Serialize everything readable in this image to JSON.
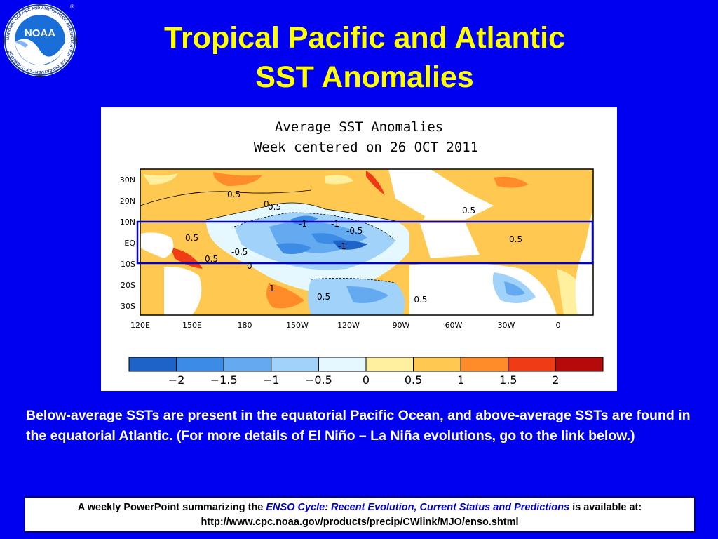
{
  "slide": {
    "title_line1": "Tropical Pacific and Atlantic",
    "title_line2": "SST Anomalies",
    "caption": "Below-average SSTs are present in the equatorial Pacific Ocean, and above-average SSTs are found in the equatorial Atlantic. (For more details of El Niño – La Niña evolutions, go to the link below.)"
  },
  "logo": {
    "text": "NOAA",
    "ring_text": "NATIONAL OCEANIC AND ATMOSPHERIC ADMINISTRATION · U.S. DEPARTMENT OF COMMERCE",
    "registered": "®"
  },
  "map": {
    "title_line1": "Average SST Anomalies",
    "title_line2": "Week centered on 26 OCT 2011",
    "lat_labels": [
      "30N",
      "20N",
      "10N",
      "EQ",
      "10S",
      "20S",
      "30S"
    ],
    "lon_labels": [
      "120E",
      "150E",
      "180",
      "150W",
      "120W",
      "90W",
      "60W",
      "30W",
      "0"
    ],
    "contour_labels": [
      "0.5",
      "0",
      "0.5",
      "0.5",
      "-1",
      "-1",
      "-0.5",
      "0.5",
      "-0.5",
      "-1",
      "0.5",
      "0.5",
      "0",
      "1",
      "0.5",
      "-0.5"
    ],
    "box_region": "10N–10S",
    "colorbar_ticks": [
      "-2",
      "-1.5",
      "-1",
      "-0.5",
      "0",
      "0.5",
      "1",
      "1.5",
      "2"
    ],
    "colorbar_colors": [
      "#1e64c8",
      "#3c8ce6",
      "#64aaf0",
      "#a0d2fa",
      "#e6f8ff",
      "#fff0a0",
      "#ffc850",
      "#ff8c28",
      "#f03c14",
      "#b40a0a"
    ]
  },
  "footer": {
    "text_before": "A weekly PowerPoint summarizing the ",
    "link_title": "ENSO Cycle: Recent Evolution, Current Status and Predictions",
    "text_after": " is available at:",
    "url": "http://www.cpc.noaa.gov/products/precip/CWlink/MJO/enso.shtml"
  }
}
